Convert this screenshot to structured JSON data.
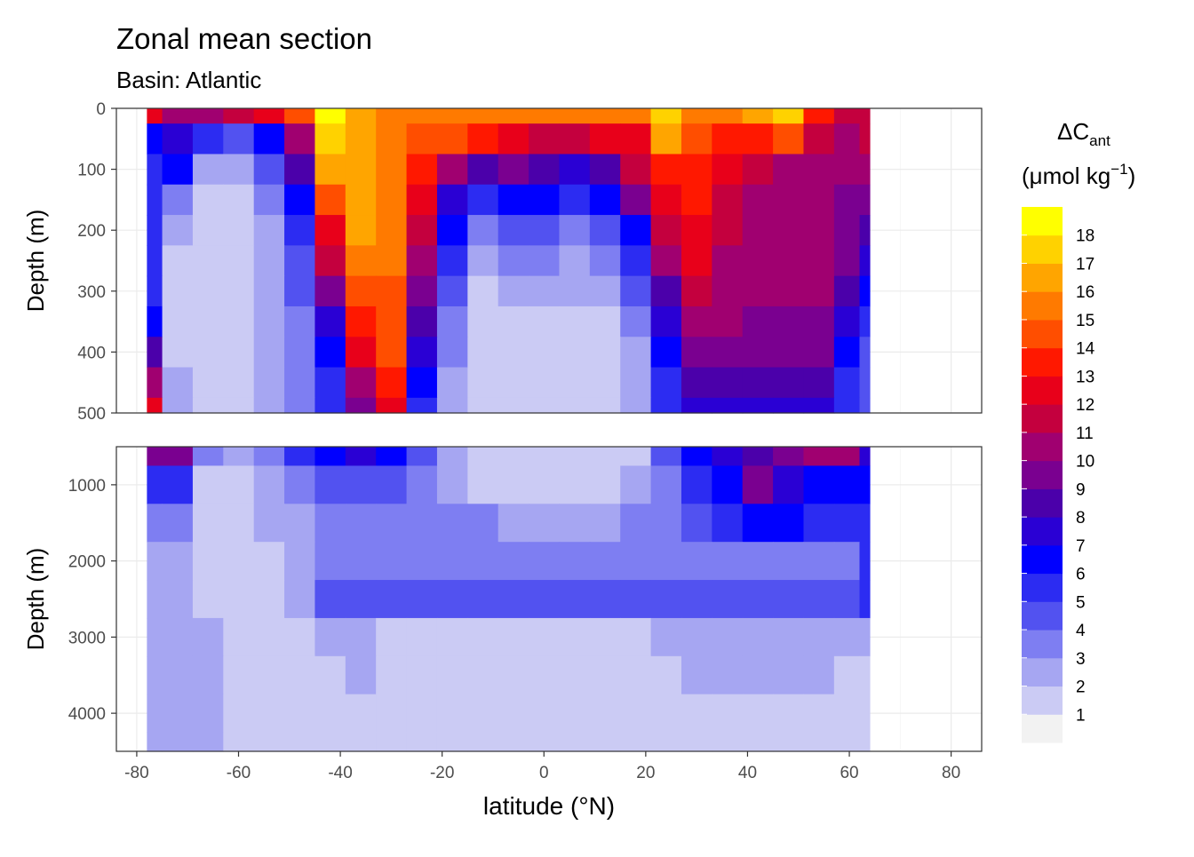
{
  "chart_data": {
    "type": "heatmap",
    "title": "Zonal mean section",
    "subtitle": "Basin: Atlantic",
    "xlabel": "latitude (°N)",
    "ylabel": "Depth (m)",
    "xlim": [
      -84,
      86
    ],
    "x_ticks": [
      "-80",
      "-60",
      "-40",
      "-20",
      "0",
      "20",
      "40",
      "60",
      "80"
    ],
    "x_tick_values": [
      -80,
      -60,
      -40,
      -20,
      0,
      20,
      40,
      60,
      80
    ],
    "panels": [
      {
        "name": "upper",
        "ylim": [
          0,
          500
        ],
        "y_ticks": [
          "0",
          "100",
          "200",
          "300",
          "400",
          "500"
        ],
        "y_tick_values": [
          0,
          100,
          200,
          300,
          400,
          500
        ],
        "depths": [
          0,
          50,
          100,
          150,
          200,
          250,
          300,
          350,
          400,
          450,
          500
        ],
        "lat": [
          -78,
          -72,
          -66,
          -60,
          -54,
          -48,
          -42,
          -36,
          -30,
          -24,
          -18,
          -12,
          -6,
          0,
          6,
          12,
          18,
          24,
          30,
          36,
          42,
          48,
          54,
          60,
          64
        ],
        "values": [
          [
            12,
            10,
            10,
            11,
            12,
            14,
            18,
            16,
            15,
            15,
            15,
            15,
            15,
            15,
            15,
            15,
            15,
            17,
            15,
            15,
            16,
            17,
            13,
            11,
            11
          ],
          [
            6,
            7,
            5,
            4,
            6,
            10,
            17,
            16,
            15,
            14,
            14,
            13,
            12,
            11,
            11,
            12,
            12,
            16,
            14,
            13,
            13,
            14,
            11,
            10,
            11
          ],
          [
            5,
            6,
            2,
            2,
            4,
            8,
            16,
            16,
            15,
            13,
            10,
            8,
            9,
            8,
            7,
            8,
            11,
            13,
            13,
            12,
            11,
            10,
            10,
            10,
            10
          ],
          [
            5,
            3,
            1,
            1,
            3,
            6,
            14,
            16,
            15,
            12,
            7,
            5,
            6,
            6,
            5,
            6,
            9,
            12,
            13,
            11,
            10,
            10,
            10,
            9,
            9
          ],
          [
            5,
            2,
            1,
            1,
            2,
            5,
            12,
            16,
            15,
            11,
            6,
            3,
            4,
            4,
            3,
            4,
            6,
            11,
            12,
            11,
            10,
            10,
            10,
            9,
            8
          ],
          [
            5,
            1,
            1,
            1,
            2,
            4,
            11,
            15,
            15,
            10,
            5,
            2,
            3,
            3,
            2,
            3,
            5,
            10,
            12,
            10,
            10,
            10,
            10,
            9,
            7
          ],
          [
            5,
            1,
            1,
            1,
            2,
            4,
            9,
            14,
            14,
            9,
            4,
            1,
            2,
            2,
            2,
            2,
            4,
            8,
            11,
            10,
            10,
            10,
            10,
            8,
            6
          ],
          [
            6,
            1,
            1,
            1,
            2,
            3,
            7,
            13,
            14,
            8,
            3,
            1,
            1,
            1,
            1,
            1,
            3,
            7,
            10,
            10,
            9,
            9,
            9,
            7,
            5
          ],
          [
            8,
            1,
            1,
            1,
            2,
            3,
            6,
            12,
            14,
            7,
            3,
            1,
            1,
            1,
            1,
            1,
            2,
            6,
            9,
            9,
            9,
            9,
            9,
            6,
            4
          ],
          [
            10,
            2,
            1,
            1,
            2,
            3,
            5,
            10,
            13,
            6,
            2,
            1,
            1,
            1,
            1,
            1,
            2,
            5,
            8,
            8,
            8,
            8,
            8,
            5,
            4
          ],
          [
            12,
            2,
            1,
            1,
            2,
            3,
            5,
            9,
            12,
            5,
            2,
            1,
            1,
            1,
            1,
            1,
            2,
            5,
            7,
            7,
            7,
            7,
            7,
            5,
            4
          ]
        ]
      },
      {
        "name": "lower",
        "ylim": [
          500,
          4500
        ],
        "y_ticks": [
          "1000",
          "2000",
          "3000",
          "4000"
        ],
        "y_tick_values": [
          1000,
          2000,
          3000,
          4000
        ],
        "depths": [
          500,
          1000,
          1500,
          2000,
          2500,
          3000,
          3500,
          4000,
          4500
        ],
        "lat": [
          -78,
          -72,
          -66,
          -60,
          -54,
          -48,
          -42,
          -36,
          -30,
          -24,
          -18,
          -12,
          -6,
          0,
          6,
          12,
          18,
          24,
          30,
          36,
          42,
          48,
          54,
          60,
          64
        ],
        "values": [
          [
            9,
            9,
            3,
            2,
            3,
            5,
            6,
            7,
            6,
            4,
            2,
            1,
            1,
            1,
            1,
            1,
            1,
            4,
            6,
            7,
            8,
            9,
            10,
            10,
            7
          ],
          [
            5,
            5,
            1,
            1,
            2,
            3,
            4,
            4,
            4,
            3,
            2,
            1,
            1,
            1,
            1,
            1,
            2,
            3,
            5,
            6,
            9,
            7,
            6,
            6,
            6
          ],
          [
            3,
            3,
            1,
            1,
            2,
            2,
            3,
            3,
            3,
            3,
            3,
            3,
            2,
            2,
            2,
            2,
            3,
            3,
            4,
            5,
            6,
            6,
            5,
            5,
            5
          ],
          [
            2,
            2,
            1,
            1,
            1,
            2,
            3,
            3,
            3,
            3,
            3,
            3,
            3,
            3,
            3,
            3,
            3,
            3,
            3,
            3,
            3,
            3,
            3,
            3,
            5
          ],
          [
            2,
            2,
            1,
            1,
            1,
            2,
            4,
            4,
            4,
            4,
            4,
            4,
            4,
            4,
            4,
            4,
            4,
            4,
            4,
            4,
            4,
            4,
            4,
            4,
            5
          ],
          [
            2,
            2,
            2,
            1,
            1,
            1,
            2,
            2,
            1,
            1,
            1,
            1,
            1,
            1,
            1,
            1,
            1,
            2,
            2,
            2,
            2,
            2,
            2,
            2,
            2
          ],
          [
            2,
            2,
            2,
            1,
            1,
            1,
            1,
            2,
            1,
            1,
            1,
            1,
            1,
            1,
            1,
            1,
            1,
            1,
            2,
            2,
            2,
            2,
            2,
            1,
            1
          ],
          [
            2,
            2,
            2,
            1,
            1,
            1,
            1,
            1,
            1,
            1,
            1,
            1,
            1,
            1,
            1,
            1,
            1,
            1,
            1,
            1,
            1,
            1,
            1,
            1,
            1
          ],
          [
            2,
            2,
            2,
            1,
            1,
            1,
            1,
            1,
            1,
            1,
            1,
            1,
            1,
            1,
            1,
            1,
            1,
            1,
            1,
            1,
            1,
            1,
            1,
            1,
            1
          ]
        ]
      }
    ],
    "legend": {
      "title_main": "ΔC",
      "title_sub": "ant",
      "title_line2": "(μmol kg",
      "title_sup": "−1",
      "title_close": ")",
      "labels": [
        "1",
        "2",
        "3",
        "4",
        "5",
        "6",
        "7",
        "8",
        "9",
        "10",
        "11",
        "12",
        "13",
        "14",
        "15",
        "16",
        "17",
        "18"
      ],
      "colors": [
        "#f2f2f2",
        "#cbcbf4",
        "#a6a6f2",
        "#7e7ef2",
        "#5252f0",
        "#2c2cf2",
        "#0000ff",
        "#2a00d4",
        "#4b00aa",
        "#7a0090",
        "#a00070",
        "#c4003e",
        "#e8001a",
        "#ff1800",
        "#ff4e00",
        "#ff7a00",
        "#ffa500",
        "#ffd200",
        "#ffff00"
      ]
    },
    "grid": true,
    "legend_position": "right"
  }
}
